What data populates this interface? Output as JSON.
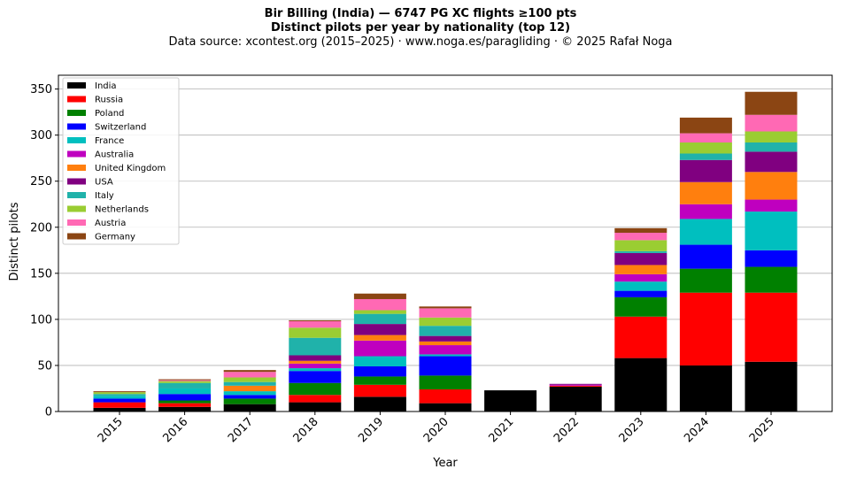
{
  "chart_data": {
    "type": "bar",
    "stacked": true,
    "title": "Bir Billing (India)  —  6747 PG XC flights ≥100 pts",
    "subtitle": "Distinct pilots per year by nationality (top 12)",
    "source": "Data source: xcontest.org (2015–2025)  ·  www.noga.es/paragliding  ·  © 2025 Rafał Noga",
    "xlabel": "Year",
    "ylabel": "Distinct pilots",
    "ylim": [
      0,
      365
    ],
    "yticks": [
      0,
      50,
      100,
      150,
      200,
      250,
      300,
      350
    ],
    "grid": "horizontal",
    "legend_position": "top-left",
    "categories": [
      "2015",
      "2016",
      "2017",
      "2018",
      "2019",
      "2020",
      "2021",
      "2022",
      "2023",
      "2024",
      "2025"
    ],
    "series": [
      {
        "name": "India",
        "color": "#000000",
        "values": [
          4,
          5,
          8,
          10,
          16,
          9,
          23,
          27,
          58,
          50,
          54
        ]
      },
      {
        "name": "Russia",
        "color": "#ff0000",
        "values": [
          6,
          4,
          0,
          8,
          13,
          15,
          0,
          1,
          45,
          79,
          75
        ]
      },
      {
        "name": "Poland",
        "color": "#008000",
        "values": [
          0,
          3,
          6,
          13,
          9,
          15,
          0,
          0,
          21,
          26,
          28
        ]
      },
      {
        "name": "Switzerland",
        "color": "#0000ff",
        "values": [
          4,
          7,
          4,
          13,
          11,
          21,
          0,
          0,
          7,
          26,
          18
        ]
      },
      {
        "name": "France",
        "color": "#00bfbf",
        "values": [
          3,
          6,
          4,
          3,
          11,
          2,
          0,
          0,
          10,
          28,
          42
        ]
      },
      {
        "name": "Australia",
        "color": "#bf00bf",
        "values": [
          0,
          0,
          0,
          5,
          17,
          10,
          0,
          1,
          8,
          16,
          13
        ]
      },
      {
        "name": "United Kingdom",
        "color": "#ff7f0e",
        "values": [
          0,
          0,
          6,
          3,
          6,
          4,
          0,
          0,
          10,
          24,
          30
        ]
      },
      {
        "name": "USA",
        "color": "#800080",
        "values": [
          0,
          0,
          0,
          6,
          12,
          6,
          0,
          1,
          13,
          24,
          22
        ]
      },
      {
        "name": "Italy",
        "color": "#20b2aa",
        "values": [
          2,
          6,
          4,
          19,
          11,
          11,
          0,
          0,
          2,
          7,
          10
        ]
      },
      {
        "name": "Netherlands",
        "color": "#9acd32",
        "values": [
          2,
          2,
          5,
          11,
          4,
          9,
          0,
          0,
          12,
          12,
          12
        ]
      },
      {
        "name": "Austria",
        "color": "#ff69b4",
        "values": [
          0,
          1,
          6,
          7,
          12,
          10,
          0,
          0,
          8,
          10,
          18
        ]
      },
      {
        "name": "Germany",
        "color": "#8b4513",
        "values": [
          1,
          1,
          2,
          1,
          6,
          2,
          0,
          0,
          5,
          17,
          25
        ]
      }
    ]
  }
}
